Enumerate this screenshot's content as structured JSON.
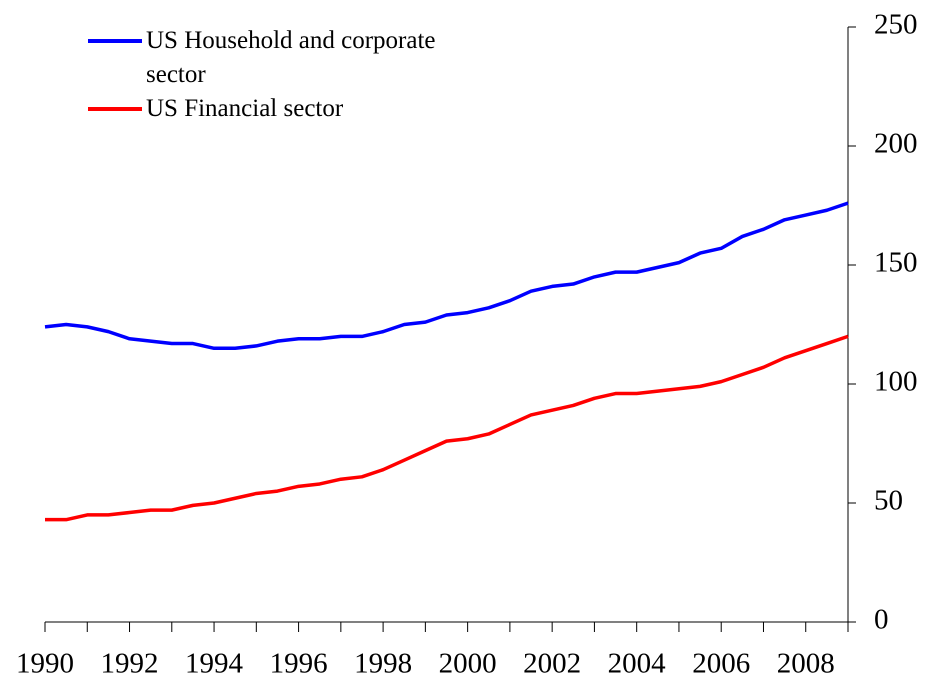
{
  "chart_data": {
    "type": "line",
    "x": [
      1990,
      1990.5,
      1991,
      1991.5,
      1992,
      1992.5,
      1993,
      1993.5,
      1994,
      1994.5,
      1995,
      1995.5,
      1996,
      1996.5,
      1997,
      1997.5,
      1998,
      1998.5,
      1999,
      1999.5,
      2000,
      2000.5,
      2001,
      2001.5,
      2002,
      2002.5,
      2003,
      2003.5,
      2004,
      2004.5,
      2005,
      2005.5,
      2006,
      2006.5,
      2007,
      2007.5,
      2008,
      2008.5,
      2009
    ],
    "series": [
      {
        "name": "US Household and corporate sector",
        "color": "#0000ff",
        "values": [
          124,
          125,
          124,
          122,
          119,
          118,
          117,
          117,
          115,
          115,
          116,
          118,
          119,
          119,
          120,
          120,
          122,
          125,
          126,
          129,
          130,
          132,
          135,
          139,
          141,
          142,
          145,
          147,
          147,
          149,
          151,
          155,
          157,
          162,
          165,
          169,
          171,
          173,
          176
        ]
      },
      {
        "name": "US Financial sector",
        "color": "#ff0000",
        "values": [
          43,
          43,
          45,
          45,
          46,
          47,
          47,
          49,
          50,
          52,
          54,
          55,
          57,
          58,
          60,
          61,
          64,
          68,
          72,
          76,
          77,
          79,
          83,
          87,
          89,
          91,
          94,
          96,
          96,
          97,
          98,
          99,
          101,
          104,
          107,
          111,
          114,
          117,
          120
        ]
      }
    ],
    "xlim": [
      1990,
      2009
    ],
    "xticks": [
      1990,
      1992,
      1994,
      1996,
      1998,
      2000,
      2002,
      2004,
      2006,
      2008
    ],
    "x_minor_ticks": [
      1991,
      1993,
      1995,
      1997,
      1999,
      2001,
      2003,
      2005,
      2007,
      2009
    ],
    "ylim": [
      0,
      250
    ],
    "yticks": [
      0,
      50,
      100,
      150,
      200,
      250
    ],
    "y_axis_side": "right",
    "legend": "upper left"
  }
}
